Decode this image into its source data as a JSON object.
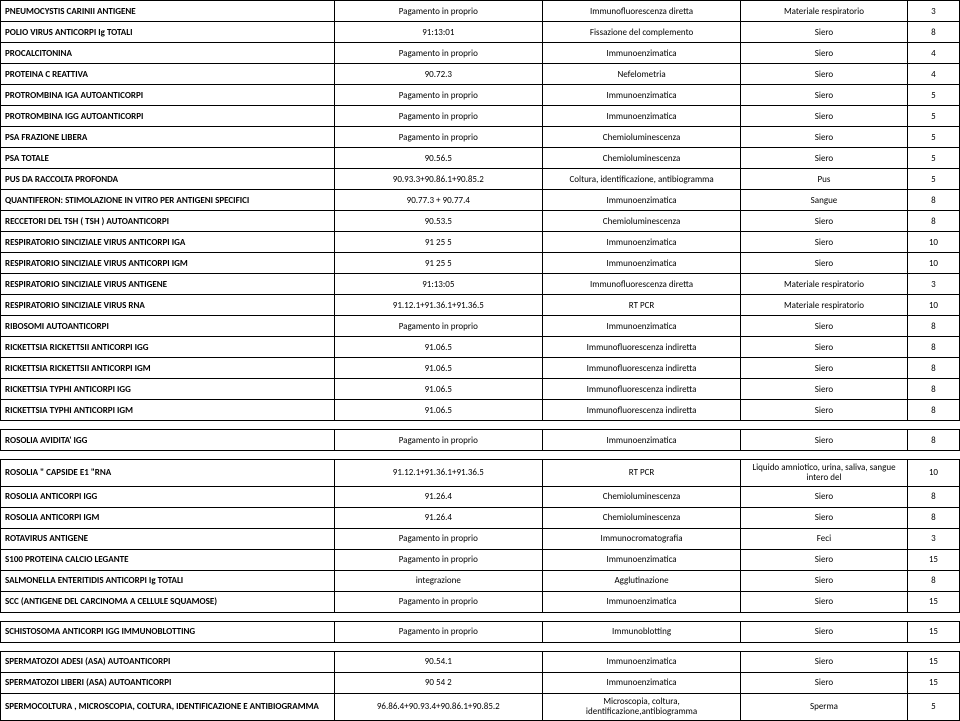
{
  "rows": [
    {
      "name": "PNEUMOCYSTIS CARINII ANTIGENE",
      "code": "Pagamento in proprio",
      "method": "Immunofluorescenza diretta",
      "sample": "Materiale respiratorio",
      "val": "3"
    },
    {
      "name": "POLIO VIRUS  ANTICORPI Ig TOTALI",
      "code": "91:13:01",
      "method": "Fissazione del complemento",
      "sample": "Siero",
      "val": "8"
    },
    {
      "name": "PROCALCITONINA",
      "code": "Pagamento in proprio",
      "method": "Immunoenzimatica",
      "sample": "Siero",
      "val": "4"
    },
    {
      "name": "PROTEINA C REATTIVA",
      "code": "90.72.3",
      "method": "Nefelometria",
      "sample": "Siero",
      "val": "4"
    },
    {
      "name": "PROTROMBINA IGA AUTOANTICORPI",
      "code": "Pagamento in proprio",
      "method": "Immunoenzimatica",
      "sample": "Siero",
      "val": "5"
    },
    {
      "name": "PROTROMBINA IGG AUTOANTICORPI",
      "code": "Pagamento in proprio",
      "method": "Immunoenzimatica",
      "sample": "Siero",
      "val": "5"
    },
    {
      "name": "PSA FRAZIONE LIBERA",
      "code": "Pagamento in proprio",
      "method": "Chemioluminescenza",
      "sample": "Siero",
      "val": "5"
    },
    {
      "name": "PSA TOTALE",
      "code": "90.56.5",
      "method": "Chemioluminescenza",
      "sample": "Siero",
      "val": "5"
    },
    {
      "name": "PUS DA RACCOLTA PROFONDA",
      "code": "90.93.3+90.86.1+90.85.2",
      "method": "Coltura, identificazione, antibiogramma",
      "sample": "Pus",
      "val": "5"
    },
    {
      "name": "QUANTIFERON: STIMOLAZIONE IN VITRO PER ANTIGENI SPECIFICI",
      "code": "90.77.3 +  90.77.4",
      "method": "Immunoenzimatica",
      "sample": "Sangue",
      "val": "8"
    },
    {
      "name": "RECCETORI DEL TSH ( TSH ) AUTOANTICORPI",
      "code": "90.53.5",
      "method": "Chemioluminescenza",
      "sample": "Siero",
      "val": "8"
    },
    {
      "name": "RESPIRATORIO SINCIZIALE VIRUS ANTICORPI IGA",
      "code": "91 25 5",
      "method": "Immunoenzimatica",
      "sample": "Siero",
      "val": "10"
    },
    {
      "name": "RESPIRATORIO SINCIZIALE VIRUS ANTICORPI IGM",
      "code": "91 25 5",
      "method": "Immunoenzimatica",
      "sample": "Siero",
      "val": "10"
    },
    {
      "name": "RESPIRATORIO SINCIZIALE VIRUS ANTIGENE",
      "code": "91:13:05",
      "method": "Immunofluorescenza diretta",
      "sample": "Materiale respiratorio",
      "val": "3"
    },
    {
      "name": "RESPIRATORIO SINCIZIALE VIRUS RNA",
      "code": "91.12.1+91.36.1+91.36.5",
      "method": "RT PCR",
      "sample": "Materiale respiratorio",
      "val": "10"
    },
    {
      "name": "RIBOSOMI AUTOANTICORPI",
      "code": "Pagamento in proprio",
      "method": "Immunoenzimatica",
      "sample": "Siero",
      "val": "8"
    },
    {
      "name": "RICKETTSIA RICKETTSII ANTICORPI IGG",
      "code": "91.06.5",
      "method": "Immunofluorescenza indiretta",
      "sample": "Siero",
      "val": "8"
    },
    {
      "name": "RICKETTSIA RICKETTSII ANTICORPI IGM",
      "code": "91.06.5",
      "method": "Immunofluorescenza indiretta",
      "sample": "Siero",
      "val": "8"
    },
    {
      "name": "RICKETTSIA TYPHI  ANTICORPI IGG",
      "code": "91.06.5",
      "method": "Immunofluorescenza indiretta",
      "sample": "Siero",
      "val": "8"
    },
    {
      "name": "RICKETTSIA TYPHI  ANTICORPI IGM",
      "code": "91.06.5",
      "method": "Immunofluorescenza indiretta",
      "sample": "Siero",
      "val": "8"
    },
    {
      "gap": true
    },
    {
      "name": "ROSOLIA  AVIDITA' IGG",
      "code": "Pagamento in proprio",
      "method": "Immunoenzimatica",
      "sample": "Siero",
      "val": "8"
    },
    {
      "gap": true
    },
    {
      "name": "ROSOLIA \" CAPSIDE E1 \"RNA",
      "code": "91.12.1+91.36.1+91.36.5",
      "method": "RT PCR",
      "sample": "Liquido amniotico, urina, saliva, sangue intero del",
      "val": "10",
      "wrap": true
    },
    {
      "name": "ROSOLIA ANTICORPI IGG",
      "code": "91.26.4",
      "method": "Chemioluminescenza",
      "sample": "Siero",
      "val": "8"
    },
    {
      "name": "ROSOLIA ANTICORPI IGM",
      "code": "91.26.4",
      "method": "Chemioluminescenza",
      "sample": "Siero",
      "val": "8"
    },
    {
      "name": "ROTAVIRUS ANTIGENE",
      "code": "Pagamento in proprio",
      "method": "Immunocromatografia",
      "sample": "Feci",
      "val": "3"
    },
    {
      "name": "S100 PROTEINA CALCIO LEGANTE",
      "code": "Pagamento in proprio",
      "method": "Immunoenzimatica",
      "sample": "Siero",
      "val": "15"
    },
    {
      "name": "SALMONELLA ENTERITIDIS ANTICORPI Ig TOTALI",
      "code": "integrazione",
      "method": "Agglutinazione",
      "sample": "Siero",
      "val": "8"
    },
    {
      "name": "SCC (ANTIGENE DEL CARCINOMA A CELLULE SQUAMOSE)",
      "code": "Pagamento in proprio",
      "method": "Immunoenzimatica",
      "sample": "Siero",
      "val": "15"
    },
    {
      "gap": true
    },
    {
      "name": "SCHISTOSOMA ANTICORPI IGG IMMUNOBLOTTING",
      "code": "Pagamento in proprio",
      "method": "Immunoblotting",
      "sample": "Siero",
      "val": "15"
    },
    {
      "gap": true
    },
    {
      "name": "SPERMATOZOI  ADESI (ASA) AUTOANTICORPI",
      "code": "90.54.1",
      "method": "Immunoenzimatica",
      "sample": "Siero",
      "val": "15"
    },
    {
      "name": "SPERMATOZOI  LIBERI (ASA) AUTOANTICORPI",
      "code": "90 54 2",
      "method": "Immunoenzimatica",
      "sample": "Siero",
      "val": "15"
    },
    {
      "name": "SPERMOCOLTURA , MICROSCOPIA, COLTURA, IDENTIFICAZIONE E ANTIBIOGRAMMA",
      "code": "96.86.4+90.93.4+90.86.1+90.85.2",
      "method": "Microscopia, coltura, identificazione,antibiogramma",
      "sample": "Sperma",
      "val": "5",
      "wrap": true
    }
  ]
}
